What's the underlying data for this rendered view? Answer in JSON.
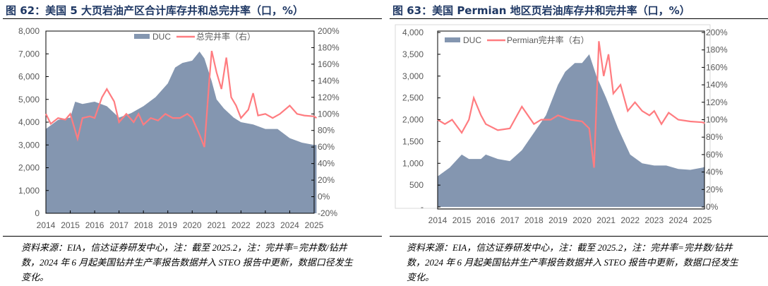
{
  "charts": [
    {
      "title": "图 62：美国 5 大页岩油产区合计库存井和总完井率（口，%）",
      "source": "资料来源：EIA，信达证券研发中心，注：截至 2025.2，注：完井率=完井数/钻井数，2024 年 6 月起美国钻井生产率报告数据并入 STEO 报告中更新，数据口径发生变化。"
    },
    {
      "title": "图 63：美国 Permian 地区页岩油库存井和完井率（口，%）",
      "source": "资料来源：EIA，信达证券研发中心，注：截至 2025.2，注：完井率=完井数/钻井数，2024 年 6 月起美国钻井生产率报告数据并入 STEO 报告中更新，数据口径发生变化。"
    }
  ],
  "chart_data": [
    {
      "type": "area+line",
      "legend_placement": "top-center",
      "grid": false,
      "x_ticks": [
        "2014",
        "2015",
        "2016",
        "2017",
        "2018",
        "2019",
        "2020",
        "2021",
        "2022",
        "2023",
        "2024",
        "2025"
      ],
      "ylim": [
        0,
        8000
      ],
      "y_ticks": [
        "0",
        "1,000",
        "2,000",
        "3,000",
        "4,000",
        "5,000",
        "6,000",
        "7,000",
        "8,000"
      ],
      "y2lim": [
        -20,
        200
      ],
      "y2_ticks": [
        "-20%",
        "0%",
        "20%",
        "40%",
        "60%",
        "80%",
        "100%",
        "120%",
        "140%",
        "160%",
        "180%",
        "200%"
      ],
      "colors": {
        "area": "#8496b0",
        "line": "#ff7c80"
      },
      "series": [
        {
          "name": "DUC",
          "axis": "left",
          "x": [
            2014.0,
            2014.5,
            2015.0,
            2015.2,
            2015.5,
            2016.0,
            2016.5,
            2017.0,
            2017.5,
            2018.0,
            2018.5,
            2019.0,
            2019.3,
            2019.6,
            2020.0,
            2020.3,
            2020.5,
            2020.8,
            2021.0,
            2021.3,
            2021.7,
            2022.0,
            2022.5,
            2023.0,
            2023.5,
            2024.0,
            2024.5,
            2025.0,
            2025.1
          ],
          "values": [
            3700,
            4100,
            4200,
            4900,
            4800,
            4900,
            4700,
            4200,
            4400,
            4700,
            5100,
            5700,
            6400,
            6600,
            6700,
            7100,
            6800,
            5800,
            5000,
            4600,
            4200,
            4000,
            3900,
            3700,
            3700,
            3300,
            3100,
            3000,
            3000
          ]
        },
        {
          "name": "总完井率（右）",
          "axis": "right",
          "x": [
            2014.0,
            2014.2,
            2014.5,
            2014.8,
            2015.0,
            2015.3,
            2015.5,
            2015.8,
            2016.0,
            2016.3,
            2016.5,
            2016.8,
            2017.0,
            2017.3,
            2017.6,
            2017.8,
            2018.0,
            2018.3,
            2018.6,
            2018.9,
            2019.2,
            2019.5,
            2019.8,
            2020.0,
            2020.3,
            2020.5,
            2020.7,
            2020.8,
            2021.0,
            2021.2,
            2021.4,
            2021.6,
            2021.8,
            2022.0,
            2022.3,
            2022.5,
            2022.7,
            2023.0,
            2023.3,
            2023.6,
            2024.0,
            2024.3,
            2024.6,
            2025.0,
            2025.1
          ],
          "values": [
            100,
            88,
            95,
            93,
            100,
            70,
            95,
            97,
            95,
            120,
            130,
            115,
            90,
            100,
            90,
            100,
            87,
            95,
            92,
            100,
            95,
            95,
            100,
            95,
            75,
            60,
            140,
            176,
            150,
            130,
            168,
            120,
            110,
            95,
            105,
            125,
            98,
            100,
            95,
            100,
            110,
            100,
            98,
            97,
            95
          ]
        }
      ]
    },
    {
      "type": "area+line",
      "legend_placement": "top-left",
      "grid": false,
      "x_ticks": [
        "2014",
        "2015",
        "2016",
        "2017",
        "2018",
        "2019",
        "2020",
        "2021",
        "2022",
        "2023",
        "2024",
        "2025"
      ],
      "ylim": [
        0,
        4000
      ],
      "y_ticks": [
        "-",
        "500",
        "1,000",
        "1,500",
        "2,000",
        "2,500",
        "3,000",
        "3,500",
        "4,000"
      ],
      "y2lim": [
        0,
        200
      ],
      "y2_ticks": [
        "0%",
        "20%",
        "40%",
        "60%",
        "80%",
        "100%",
        "120%",
        "140%",
        "160%",
        "180%",
        "200%"
      ],
      "colors": {
        "area": "#8496b0",
        "line": "#ff7c80"
      },
      "series": [
        {
          "name": "DUC",
          "axis": "left",
          "x": [
            2014.0,
            2014.5,
            2015.0,
            2015.3,
            2015.8,
            2016.0,
            2016.5,
            2017.0,
            2017.5,
            2018.0,
            2018.5,
            2019.0,
            2019.3,
            2019.7,
            2020.0,
            2020.3,
            2020.6,
            2021.0,
            2021.5,
            2022.0,
            2022.5,
            2023.0,
            2023.5,
            2024.0,
            2024.5,
            2025.0,
            2025.1
          ],
          "values": [
            700,
            900,
            1200,
            1100,
            1100,
            1200,
            1100,
            1050,
            1300,
            1700,
            2100,
            2800,
            3100,
            3300,
            3300,
            3500,
            3000,
            2500,
            1800,
            1200,
            1000,
            950,
            950,
            870,
            850,
            900,
            920
          ]
        },
        {
          "name": "Permian完井率（右）",
          "axis": "right",
          "x": [
            2014.0,
            2014.3,
            2014.6,
            2015.0,
            2015.3,
            2015.5,
            2015.8,
            2016.0,
            2016.5,
            2017.0,
            2017.5,
            2018.0,
            2018.3,
            2018.7,
            2019.0,
            2019.5,
            2020.0,
            2020.3,
            2020.5,
            2020.7,
            2020.9,
            2021.1,
            2021.3,
            2021.6,
            2021.9,
            2022.2,
            2022.5,
            2022.8,
            2023.0,
            2023.3,
            2023.6,
            2024.0,
            2024.5,
            2025.0,
            2025.1
          ],
          "values": [
            100,
            95,
            100,
            85,
            100,
            125,
            105,
            95,
            88,
            90,
            115,
            95,
            100,
            100,
            105,
            100,
            98,
            90,
            45,
            190,
            150,
            175,
            130,
            140,
            110,
            120,
            110,
            105,
            110,
            95,
            108,
            100,
            98,
            97,
            96
          ]
        }
      ]
    }
  ]
}
